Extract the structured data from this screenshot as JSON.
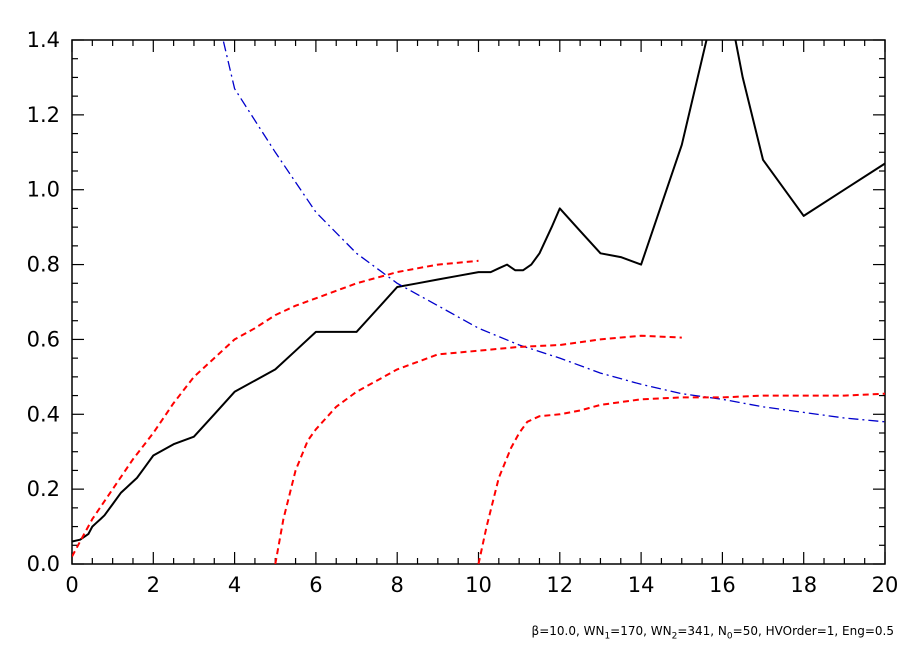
{
  "chart_data": {
    "type": "line",
    "title": "",
    "xlabel": "",
    "ylabel": "",
    "xlim": [
      0,
      20
    ],
    "ylim": [
      0,
      1.4
    ],
    "xticks": [
      0,
      2,
      4,
      6,
      8,
      10,
      12,
      14,
      16,
      18,
      20
    ],
    "yticks": [
      0.0,
      0.2,
      0.4,
      0.6,
      0.8,
      1.0,
      1.2,
      1.4
    ],
    "ytick_labels": [
      "0.0",
      "0.2",
      "0.4",
      "0.6",
      "0.8",
      "1.0",
      "1.2",
      "1.4"
    ],
    "grid": false,
    "series": [
      {
        "color": "#000000",
        "style": "solid",
        "x": [
          0,
          0.2,
          0.4,
          0.5,
          0.6,
          0.7,
          0.8,
          1.0,
          1.2,
          1.4,
          1.6,
          1.8,
          2.0,
          2.5,
          3.0,
          3.5,
          4.0,
          4.5,
          5.0,
          5.5,
          6.0,
          6.5,
          7.0,
          7.5,
          8.0,
          8.5,
          9.0,
          9.5,
          10.0,
          10.3,
          10.5,
          10.7,
          10.9,
          11.1,
          11.3,
          11.5,
          11.8,
          12.0,
          12.5,
          13.0,
          13.5,
          14.0,
          15.0,
          15.5,
          16.0,
          16.5,
          17.0,
          18.0,
          19.0,
          20.0
        ],
        "y": [
          0.06,
          0.065,
          0.08,
          0.1,
          0.11,
          0.12,
          0.13,
          0.16,
          0.19,
          0.21,
          0.23,
          0.26,
          0.29,
          0.32,
          0.34,
          0.4,
          0.46,
          0.49,
          0.52,
          0.57,
          0.62,
          0.62,
          0.62,
          0.68,
          0.74,
          0.75,
          0.76,
          0.77,
          0.78,
          0.78,
          0.79,
          0.8,
          0.785,
          0.785,
          0.8,
          0.83,
          0.9,
          0.95,
          0.89,
          0.83,
          0.82,
          0.8,
          1.12,
          1.35,
          1.58,
          1.3,
          1.08,
          0.93,
          1.0,
          1.07
        ]
      },
      {
        "color": "#0000cc",
        "style": "dashdot",
        "x": [
          3.5,
          4.0,
          5.0,
          6.0,
          7.0,
          8.0,
          9.0,
          10.0,
          11.0,
          12.0,
          13.0,
          14.0,
          15.0,
          16.0,
          17.0,
          18.0,
          19.0,
          20.0
        ],
        "y": [
          1.5,
          1.27,
          1.1,
          0.94,
          0.83,
          0.75,
          0.69,
          0.63,
          0.585,
          0.55,
          0.51,
          0.48,
          0.455,
          0.44,
          0.42,
          0.405,
          0.39,
          0.38
        ]
      },
      {
        "color": "#ff0000",
        "style": "dashed",
        "x": [
          0,
          0.2,
          0.5,
          1.0,
          1.5,
          2.0,
          2.5,
          3.0,
          3.5,
          4.0,
          4.5,
          5.0,
          5.5,
          6.0,
          6.5,
          7.0,
          7.5,
          8.0,
          8.5,
          9.0,
          9.5,
          10.0
        ],
        "y": [
          0.02,
          0.06,
          0.12,
          0.2,
          0.28,
          0.35,
          0.43,
          0.5,
          0.55,
          0.6,
          0.63,
          0.665,
          0.69,
          0.71,
          0.73,
          0.75,
          0.765,
          0.78,
          0.79,
          0.8,
          0.805,
          0.81
        ]
      },
      {
        "color": "#ff0000",
        "style": "dashed",
        "x": [
          5.0,
          5.2,
          5.5,
          5.8,
          6.0,
          6.5,
          7.0,
          7.5,
          8.0,
          8.5,
          9.0,
          10.0,
          11.0,
          12.0,
          13.0,
          14.0,
          15.0
        ],
        "y": [
          0.0,
          0.12,
          0.25,
          0.33,
          0.36,
          0.42,
          0.46,
          0.49,
          0.52,
          0.54,
          0.56,
          0.57,
          0.58,
          0.585,
          0.6,
          0.61,
          0.605
        ]
      },
      {
        "color": "#ff0000",
        "style": "dashed",
        "x": [
          10.0,
          10.2,
          10.5,
          10.8,
          11.0,
          11.2,
          11.5,
          12.0,
          12.5,
          13.0,
          14.0,
          15.0,
          16.0,
          17.0,
          18.0,
          19.0,
          20.0
        ],
        "y": [
          0.0,
          0.1,
          0.23,
          0.31,
          0.35,
          0.38,
          0.395,
          0.4,
          0.41,
          0.425,
          0.44,
          0.445,
          0.445,
          0.45,
          0.45,
          0.45,
          0.455
        ]
      }
    ]
  },
  "caption": {
    "beta": "β=10.0, WN",
    "wn1_sub": "1",
    "wn1_val": "=170, WN",
    "wn2_sub": "2",
    "wn2_val": "=341, N",
    "n0_sub": "0",
    "rest": "=50, HVOrder=1, Eng=0.5"
  }
}
